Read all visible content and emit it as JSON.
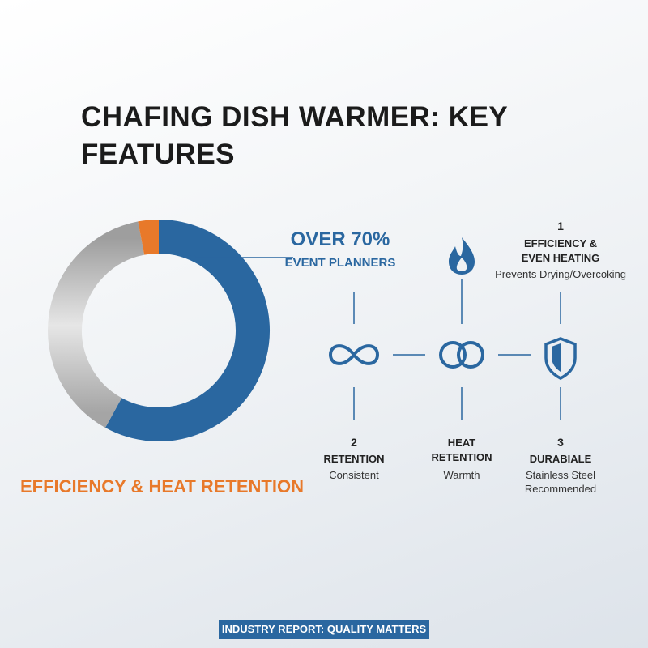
{
  "title": "CHAFING DISH WARMER: KEY FEATURES",
  "chart_data": {
    "type": "donut",
    "title": "EFFICIENCY & HEAT RETENTION",
    "values": [
      58,
      39,
      3
    ],
    "colors": [
      "#2a67a0",
      "#b9b9b9",
      "#e8792a"
    ]
  },
  "callout": {
    "headline": "OVER 70%",
    "subtext": "EVENT PLANNERS"
  },
  "features": [
    {
      "number": "1",
      "title": "EFFICIENCY & EVEN HEATING",
      "description": "Prevents Drying/Overcoking"
    },
    {
      "number": "2",
      "title": "RETENTION",
      "description": "Consistent"
    },
    {
      "title": "HEAT RETENTION",
      "description": "Warmth"
    },
    {
      "number": "3",
      "title": "DURABIALE",
      "description": "Stainless Steel Recommended"
    }
  ],
  "footer": "INDUSTRY REPORT: QUALITY MATTERS"
}
